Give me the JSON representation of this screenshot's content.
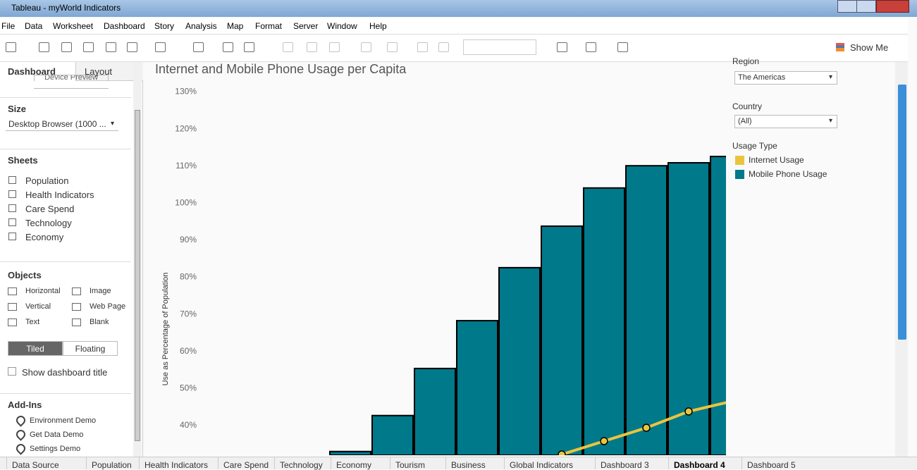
{
  "window": {
    "title": "Tableau - myWorld Indicators"
  },
  "menu": [
    "File",
    "Data",
    "Worksheet",
    "Dashboard",
    "Story",
    "Analysis",
    "Map",
    "Format",
    "Server",
    "Window",
    "Help"
  ],
  "toolbar": {
    "show_me": "Show Me"
  },
  "sidebar": {
    "tabs": [
      "Dashboard",
      "Layout"
    ],
    "device_preview": "Device Preview",
    "size_label": "Size",
    "size_value": "Desktop Browser (1000 ...",
    "sheets_label": "Sheets",
    "sheets": [
      "Population",
      "Health Indicators",
      "Care Spend",
      "Technology",
      "Economy"
    ],
    "objects_label": "Objects",
    "objects": [
      "Horizontal",
      "Image",
      "Vertical",
      "Web Page",
      "Text",
      "Blank"
    ],
    "layout_modes": [
      "Tiled",
      "Floating"
    ],
    "show_title": "Show dashboard title",
    "addins_label": "Add-Ins",
    "addins": [
      "Environment Demo",
      "Get Data Demo",
      "Settings Demo"
    ]
  },
  "chart_data": {
    "type": "bar",
    "title": "Internet and Mobile Phone Usage per Capita",
    "y_label": "Use as Percentage of Population",
    "categories": [
      null,
      null,
      null,
      null,
      null,
      null,
      null,
      null,
      null,
      null
    ],
    "series": [
      {
        "name": "Internet Usage",
        "type": "line",
        "color": "#e9c53f",
        "values": [
          null,
          null,
          null,
          null,
          null,
          32.2,
          35.8,
          39.4,
          43.8,
          46.5
        ]
      },
      {
        "name": "Mobile Phone Usage",
        "type": "bar",
        "color": "#00798a",
        "values": [
          33,
          42.7,
          55.4,
          68.3,
          82.6,
          93.8,
          104.1,
          110.1,
          110.9,
          112.6
        ]
      }
    ],
    "ylim": [
      32,
      134
    ],
    "yticks": [
      {
        "value": 40,
        "label": "40%"
      },
      {
        "value": 50,
        "label": "50%"
      },
      {
        "value": 60,
        "label": "60%"
      },
      {
        "value": 70,
        "label": "70%"
      },
      {
        "value": 80,
        "label": "80%"
      },
      {
        "value": 90,
        "label": "90%"
      },
      {
        "value": 100,
        "label": "100%"
      },
      {
        "value": 110,
        "label": "110%"
      },
      {
        "value": 120,
        "label": "120%"
      },
      {
        "value": 130,
        "label": "130%"
      }
    ],
    "grid": false,
    "legend_title": "Usage Type"
  },
  "filters": [
    {
      "label": "Region",
      "value": "The Americas"
    },
    {
      "label": "Country",
      "value": "(All)"
    }
  ],
  "tabs": [
    "Data Source",
    "Population",
    "Health Indicators",
    "Care Spend",
    "Technology",
    "Economy",
    "Tourism",
    "Business",
    "Global Indicators",
    "Dashboard 3",
    "Dashboard 4",
    "Dashboard 5"
  ]
}
